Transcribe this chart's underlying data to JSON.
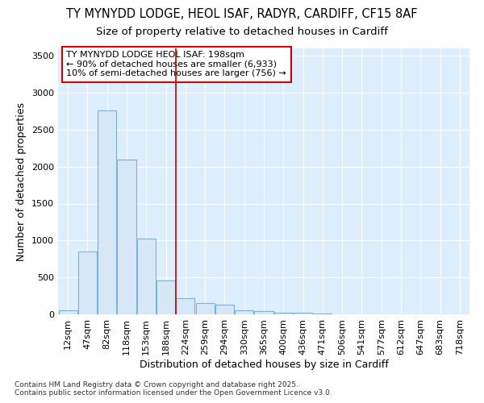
{
  "title_line1": "TY MYNYDD LODGE, HEOL ISAF, RADYR, CARDIFF, CF15 8AF",
  "title_line2": "Size of property relative to detached houses in Cardiff",
  "xlabel": "Distribution of detached houses by size in Cardiff",
  "ylabel": "Number of detached properties",
  "bar_labels": [
    "12sqm",
    "47sqm",
    "82sqm",
    "118sqm",
    "153sqm",
    "188sqm",
    "224sqm",
    "259sqm",
    "294sqm",
    "330sqm",
    "365sqm",
    "400sqm",
    "436sqm",
    "471sqm",
    "506sqm",
    "541sqm",
    "577sqm",
    "612sqm",
    "647sqm",
    "683sqm",
    "718sqm"
  ],
  "bar_values": [
    55,
    850,
    2760,
    2100,
    1030,
    455,
    220,
    150,
    130,
    60,
    40,
    25,
    20,
    10,
    3,
    0,
    0,
    0,
    0,
    0,
    0
  ],
  "bar_color": "#d6e8f7",
  "bar_edge_color": "#7ab3d9",
  "ylim": [
    0,
    3600
  ],
  "yticks": [
    0,
    500,
    1000,
    1500,
    2000,
    2500,
    3000,
    3500
  ],
  "vline_x": 5.5,
  "vline_color": "#cc0000",
  "annotation_text_line1": "TY MYNYDD LODGE HEOL ISAF: 198sqm",
  "annotation_text_line2": "← 90% of detached houses are smaller (6,933)",
  "annotation_text_line3": "10% of semi-detached houses are larger (756) →",
  "footer_line1": "Contains HM Land Registry data © Crown copyright and database right 2025.",
  "footer_line2": "Contains public sector information licensed under the Open Government Licence v3.0.",
  "fig_background_color": "#ffffff",
  "axes_background": "#ddeeff",
  "grid_color": "#ffffff",
  "title_fontsize": 10.5,
  "subtitle_fontsize": 9.5,
  "axis_label_fontsize": 9,
  "tick_fontsize": 8,
  "annotation_fontsize": 8,
  "footer_fontsize": 6.5
}
